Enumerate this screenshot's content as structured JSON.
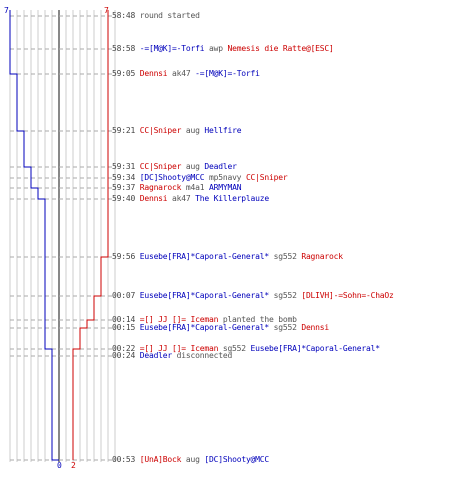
{
  "score": {
    "blue_start": "7",
    "red_start": "7",
    "blue_end": "0",
    "red_end": "2"
  },
  "colors": {
    "blue": "#0000bb",
    "red": "#cc0000",
    "text": "#444444"
  },
  "events": [
    {
      "time": "58:48",
      "parts": [
        {
          "text": "round started",
          "team": "gray"
        }
      ]
    },
    {
      "time": "58:58",
      "parts": [
        {
          "text": "-=[M@K]=-Torfi",
          "team": "blue"
        },
        {
          "text": "awp",
          "team": "gray"
        },
        {
          "text": "Nemesis die Ratte@[ESC]",
          "team": "red"
        }
      ]
    },
    {
      "time": "59:05",
      "parts": [
        {
          "text": "Dennsi",
          "team": "red"
        },
        {
          "text": "ak47",
          "team": "gray"
        },
        {
          "text": "-=[M@K]=-Torfi",
          "team": "blue"
        }
      ]
    },
    {
      "time": "59:21",
      "parts": [
        {
          "text": "CC|Sniper",
          "team": "red"
        },
        {
          "text": "aug",
          "team": "gray"
        },
        {
          "text": "Hellfire",
          "team": "blue"
        }
      ]
    },
    {
      "time": "59:31",
      "parts": [
        {
          "text": "CC|Sniper",
          "team": "red"
        },
        {
          "text": "aug",
          "team": "gray"
        },
        {
          "text": "Deadler",
          "team": "blue"
        }
      ]
    },
    {
      "time": "59:34",
      "parts": [
        {
          "text": "[DC]Shooty@MCC",
          "team": "blue"
        },
        {
          "text": "mp5navy",
          "team": "gray"
        },
        {
          "text": "CC|Sniper",
          "team": "red"
        }
      ]
    },
    {
      "time": "59:37",
      "parts": [
        {
          "text": "Ragnarock",
          "team": "red"
        },
        {
          "text": "m4a1",
          "team": "gray"
        },
        {
          "text": "ARMYMAN",
          "team": "blue"
        }
      ]
    },
    {
      "time": "59:40",
      "parts": [
        {
          "text": "Dennsi",
          "team": "red"
        },
        {
          "text": "ak47",
          "team": "gray"
        },
        {
          "text": "The Killerplauze",
          "team": "blue"
        }
      ]
    },
    {
      "time": "59:56",
      "parts": [
        {
          "text": "Eusebe[FRA]*Caporal-General*",
          "team": "blue"
        },
        {
          "text": "sg552",
          "team": "gray"
        },
        {
          "text": "Ragnarock",
          "team": "red"
        }
      ]
    },
    {
      "time": "00:07",
      "parts": [
        {
          "text": "Eusebe[FRA]*Caporal-General*",
          "team": "blue"
        },
        {
          "text": "sg552",
          "team": "gray"
        },
        {
          "text": "[DLIVH]-=Sohn=-ChaOz",
          "team": "red"
        }
      ]
    },
    {
      "time": "00:14",
      "parts": [
        {
          "text": "=[] JJ []= Iceman",
          "team": "red"
        },
        {
          "text": "planted the bomb",
          "team": "gray"
        }
      ]
    },
    {
      "time": "00:15",
      "parts": [
        {
          "text": "Eusebe[FRA]*Caporal-General*",
          "team": "blue"
        },
        {
          "text": "sg552",
          "team": "gray"
        },
        {
          "text": "Dennsi",
          "team": "red"
        }
      ]
    },
    {
      "time": "00:22",
      "parts": [
        {
          "text": "=[] JJ []= Iceman",
          "team": "red"
        },
        {
          "text": "sg552",
          "team": "gray"
        },
        {
          "text": "Eusebe[FRA]*Caporal-General*",
          "team": "blue"
        }
      ]
    },
    {
      "time": "00:24",
      "parts": [
        {
          "text": "Deadler",
          "team": "blue"
        },
        {
          "text": "disconnected",
          "team": "gray"
        }
      ]
    },
    {
      "time": "00:53",
      "parts": [
        {
          "text": "[UnA]Bock",
          "team": "red"
        },
        {
          "text": "aug",
          "team": "gray"
        },
        {
          "text": "[DC]Shooty@MCC",
          "team": "blue"
        }
      ]
    }
  ]
}
